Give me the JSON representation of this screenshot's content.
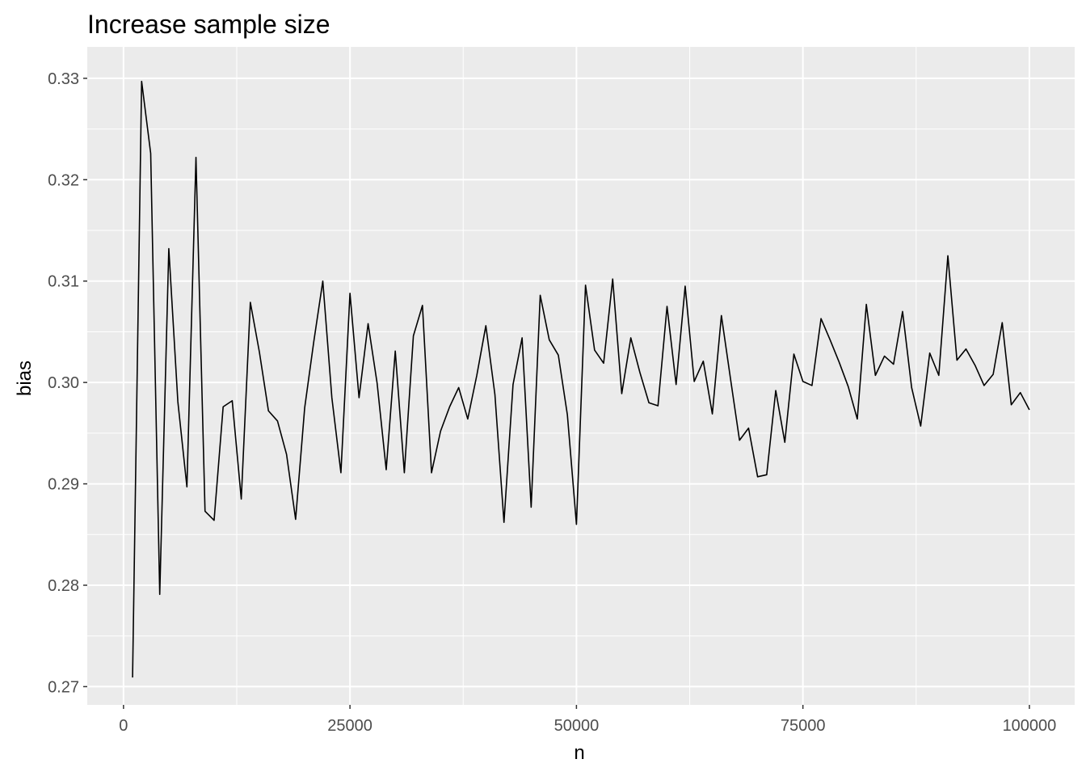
{
  "chart_data": {
    "type": "line",
    "title": "Increase sample size",
    "xlabel": "n",
    "ylabel": "bias",
    "xlim": [
      -4000,
      105000
    ],
    "ylim": [
      0.2682,
      0.3331
    ],
    "x_ticks": [
      0,
      25000,
      50000,
      75000,
      100000
    ],
    "x_tick_labels": [
      "0",
      "25000",
      "50000",
      "75000",
      "100000"
    ],
    "y_ticks": [
      0.27,
      0.28,
      0.29,
      0.3,
      0.31,
      0.32,
      0.33
    ],
    "y_tick_labels": [
      "0.27",
      "0.28",
      "0.29",
      "0.30",
      "0.31",
      "0.32",
      "0.33"
    ],
    "grid": true,
    "background": "#ebebeb",
    "grid_color": "#ffffff",
    "line_color": "#000000",
    "x": [
      1000,
      2000,
      3000,
      4000,
      5000,
      6000,
      7000,
      8000,
      9000,
      10000,
      11000,
      12000,
      13000,
      14000,
      15000,
      16000,
      17000,
      18000,
      19000,
      20000,
      21000,
      22000,
      23000,
      24000,
      25000,
      26000,
      27000,
      28000,
      29000,
      30000,
      31000,
      32000,
      33000,
      34000,
      35000,
      36000,
      37000,
      38000,
      39000,
      40000,
      41000,
      42000,
      43000,
      44000,
      45000,
      46000,
      47000,
      48000,
      49000,
      50000,
      51000,
      52000,
      53000,
      54000,
      55000,
      56000,
      57000,
      58000,
      59000,
      60000,
      61000,
      62000,
      63000,
      64000,
      65000,
      66000,
      67000,
      68000,
      69000,
      70000,
      71000,
      72000,
      73000,
      74000,
      75000,
      76000,
      77000,
      78000,
      79000,
      80000,
      81000,
      82000,
      83000,
      84000,
      85000,
      86000,
      87000,
      88000,
      89000,
      90000,
      91000,
      92000,
      93000,
      94000,
      95000,
      96000,
      97000,
      98000,
      99000,
      100000
    ],
    "y": [
      0.2709,
      0.3297,
      0.3226,
      0.2791,
      0.3132,
      0.2981,
      0.2897,
      0.3222,
      0.2873,
      0.2864,
      0.2976,
      0.2982,
      0.2885,
      0.3079,
      0.303,
      0.2972,
      0.2962,
      0.2929,
      0.2865,
      0.2975,
      0.304,
      0.31,
      0.2985,
      0.2911,
      0.3088,
      0.2985,
      0.3058,
      0.2999,
      0.2914,
      0.3031,
      0.2911,
      0.3046,
      0.3076,
      0.2911,
      0.2952,
      0.2976,
      0.2995,
      0.2964,
      0.3007,
      0.3056,
      0.2988,
      0.2862,
      0.2998,
      0.3044,
      0.2877,
      0.3086,
      0.3042,
      0.3027,
      0.2968,
      0.286,
      0.3096,
      0.3032,
      0.3019,
      0.3102,
      0.2989,
      0.3044,
      0.301,
      0.298,
      0.2977,
      0.3075,
      0.2998,
      0.3095,
      0.3001,
      0.3021,
      0.2969,
      0.3066,
      0.3004,
      0.2943,
      0.2955,
      0.2907,
      0.2909,
      0.2992,
      0.2941,
      0.3028,
      0.3001,
      0.2997,
      0.3063,
      0.3042,
      0.302,
      0.2996,
      0.2964,
      0.3077,
      0.3007,
      0.3026,
      0.3018,
      0.307,
      0.2995,
      0.2957,
      0.3029,
      0.3007,
      0.3125,
      0.3022,
      0.3033,
      0.3017,
      0.2997,
      0.3008,
      0.3059,
      0.2978,
      0.299,
      0.2973
    ]
  }
}
